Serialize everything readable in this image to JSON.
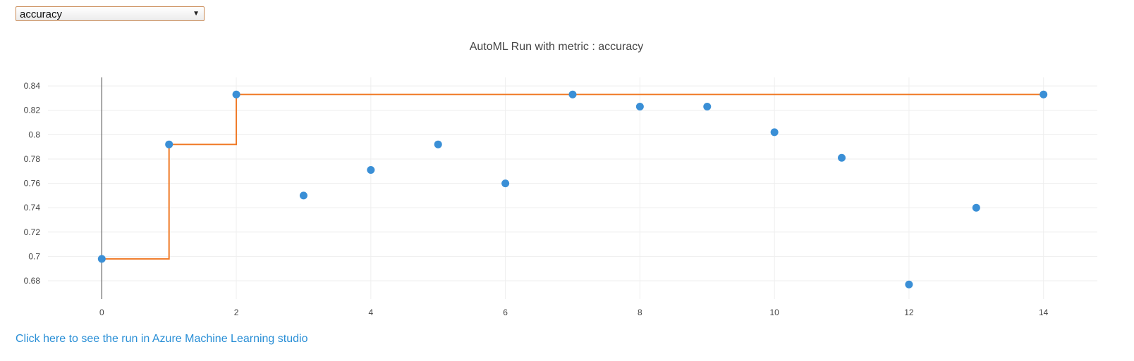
{
  "selector": {
    "selected": "accuracy",
    "arrow_icon": "triangle-down"
  },
  "link_text": "Click here to see the run in Azure Machine Learning studio",
  "colors": {
    "points": "#3a8fd6",
    "best_line": "#f07a27",
    "link": "#2a8fd6",
    "grid": "#eeeeee",
    "zero_line": "#444444",
    "text": "#444444"
  },
  "chart_data": {
    "type": "scatter",
    "title": "AutoML Run with metric : accuracy",
    "xlabel": "",
    "ylabel": "",
    "xlim": [
      -0.8,
      14.8
    ],
    "ylim": [
      0.665,
      0.847
    ],
    "x_ticks": [
      0,
      2,
      4,
      6,
      8,
      10,
      12,
      14
    ],
    "y_ticks": [
      0.68,
      0.7,
      0.72,
      0.74,
      0.76,
      0.78,
      0.8,
      0.82,
      0.84
    ],
    "grid": true,
    "legend": "none",
    "series": [
      {
        "mode": "markers",
        "x": [
          0,
          1,
          2,
          3,
          4,
          5,
          6,
          7,
          8,
          9,
          10,
          11,
          12,
          13,
          14
        ],
        "y": [
          0.698,
          0.792,
          0.833,
          0.75,
          0.771,
          0.792,
          0.76,
          0.833,
          0.823,
          0.823,
          0.802,
          0.781,
          0.677,
          0.74,
          0.833
        ]
      },
      {
        "mode": "step",
        "x": [
          0,
          1,
          2,
          3,
          4,
          5,
          6,
          7,
          8,
          9,
          10,
          11,
          12,
          13,
          14
        ],
        "y": [
          0.698,
          0.792,
          0.833,
          0.833,
          0.833,
          0.833,
          0.833,
          0.833,
          0.833,
          0.833,
          0.833,
          0.833,
          0.833,
          0.833,
          0.833
        ]
      }
    ]
  }
}
